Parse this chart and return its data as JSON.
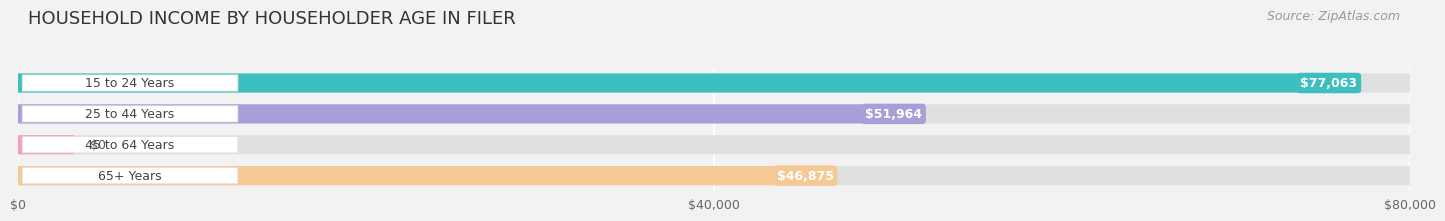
{
  "title": "HOUSEHOLD INCOME BY HOUSEHOLDER AGE IN FILER",
  "source": "Source: ZipAtlas.com",
  "categories": [
    "15 to 24 Years",
    "25 to 44 Years",
    "45 to 64 Years",
    "65+ Years"
  ],
  "values": [
    77063,
    51964,
    0,
    46875
  ],
  "bar_colors": [
    "#3dbfbf",
    "#a89fd8",
    "#f4a0b5",
    "#f5c894"
  ],
  "value_labels": [
    "$77,063",
    "$51,964",
    "$0",
    "$46,875"
  ],
  "x_max": 80000,
  "x_ticks": [
    0,
    40000,
    80000
  ],
  "x_tick_labels": [
    "$0",
    "$40,000",
    "$80,000"
  ],
  "bg_color": "#f2f2f2",
  "bar_bg_color": "#e0e0e0",
  "title_fontsize": 13,
  "source_fontsize": 9,
  "label_fontsize": 9,
  "value_fontsize": 9
}
